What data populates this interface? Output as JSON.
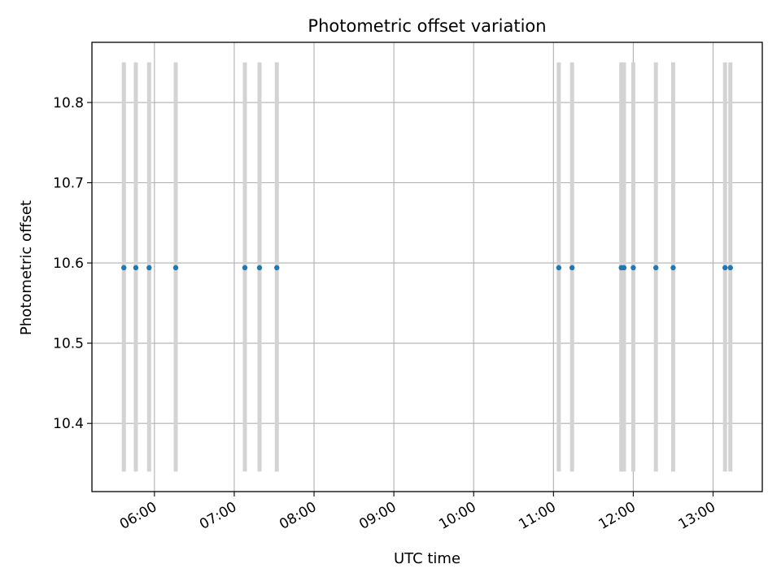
{
  "chart_data": {
    "type": "scatter",
    "title": "Photometric offset variation",
    "xlabel": "UTC time",
    "ylabel": "Photometric offset",
    "x_axis": "time",
    "xlim": [
      "05:13",
      "13:37"
    ],
    "ylim": [
      10.315,
      10.875
    ],
    "x_ticks": [
      "06:00",
      "07:00",
      "08:00",
      "09:00",
      "10:00",
      "11:00",
      "12:00",
      "13:00"
    ],
    "y_ticks": [
      10.4,
      10.5,
      10.6,
      10.7,
      10.8
    ],
    "grid": true,
    "series": [
      {
        "x": [
          "05:37",
          "05:46",
          "05:56",
          "06:16",
          "07:08",
          "07:19",
          "07:32",
          "11:04",
          "11:14",
          "11:51",
          "11:53",
          "12:00",
          "12:17",
          "12:30",
          "13:09",
          "13:13"
        ],
        "y": [
          10.594,
          10.594,
          10.594,
          10.594,
          10.594,
          10.594,
          10.594,
          10.594,
          10.594,
          10.594,
          10.594,
          10.594,
          10.594,
          10.594,
          10.594,
          10.594
        ],
        "error_range": [
          10.34,
          10.85
        ]
      }
    ],
    "colors": {
      "point": "#1f77b4",
      "error_bar": "#d3d3d3",
      "grid": "#b0b0b0",
      "axes": "#000000"
    }
  }
}
